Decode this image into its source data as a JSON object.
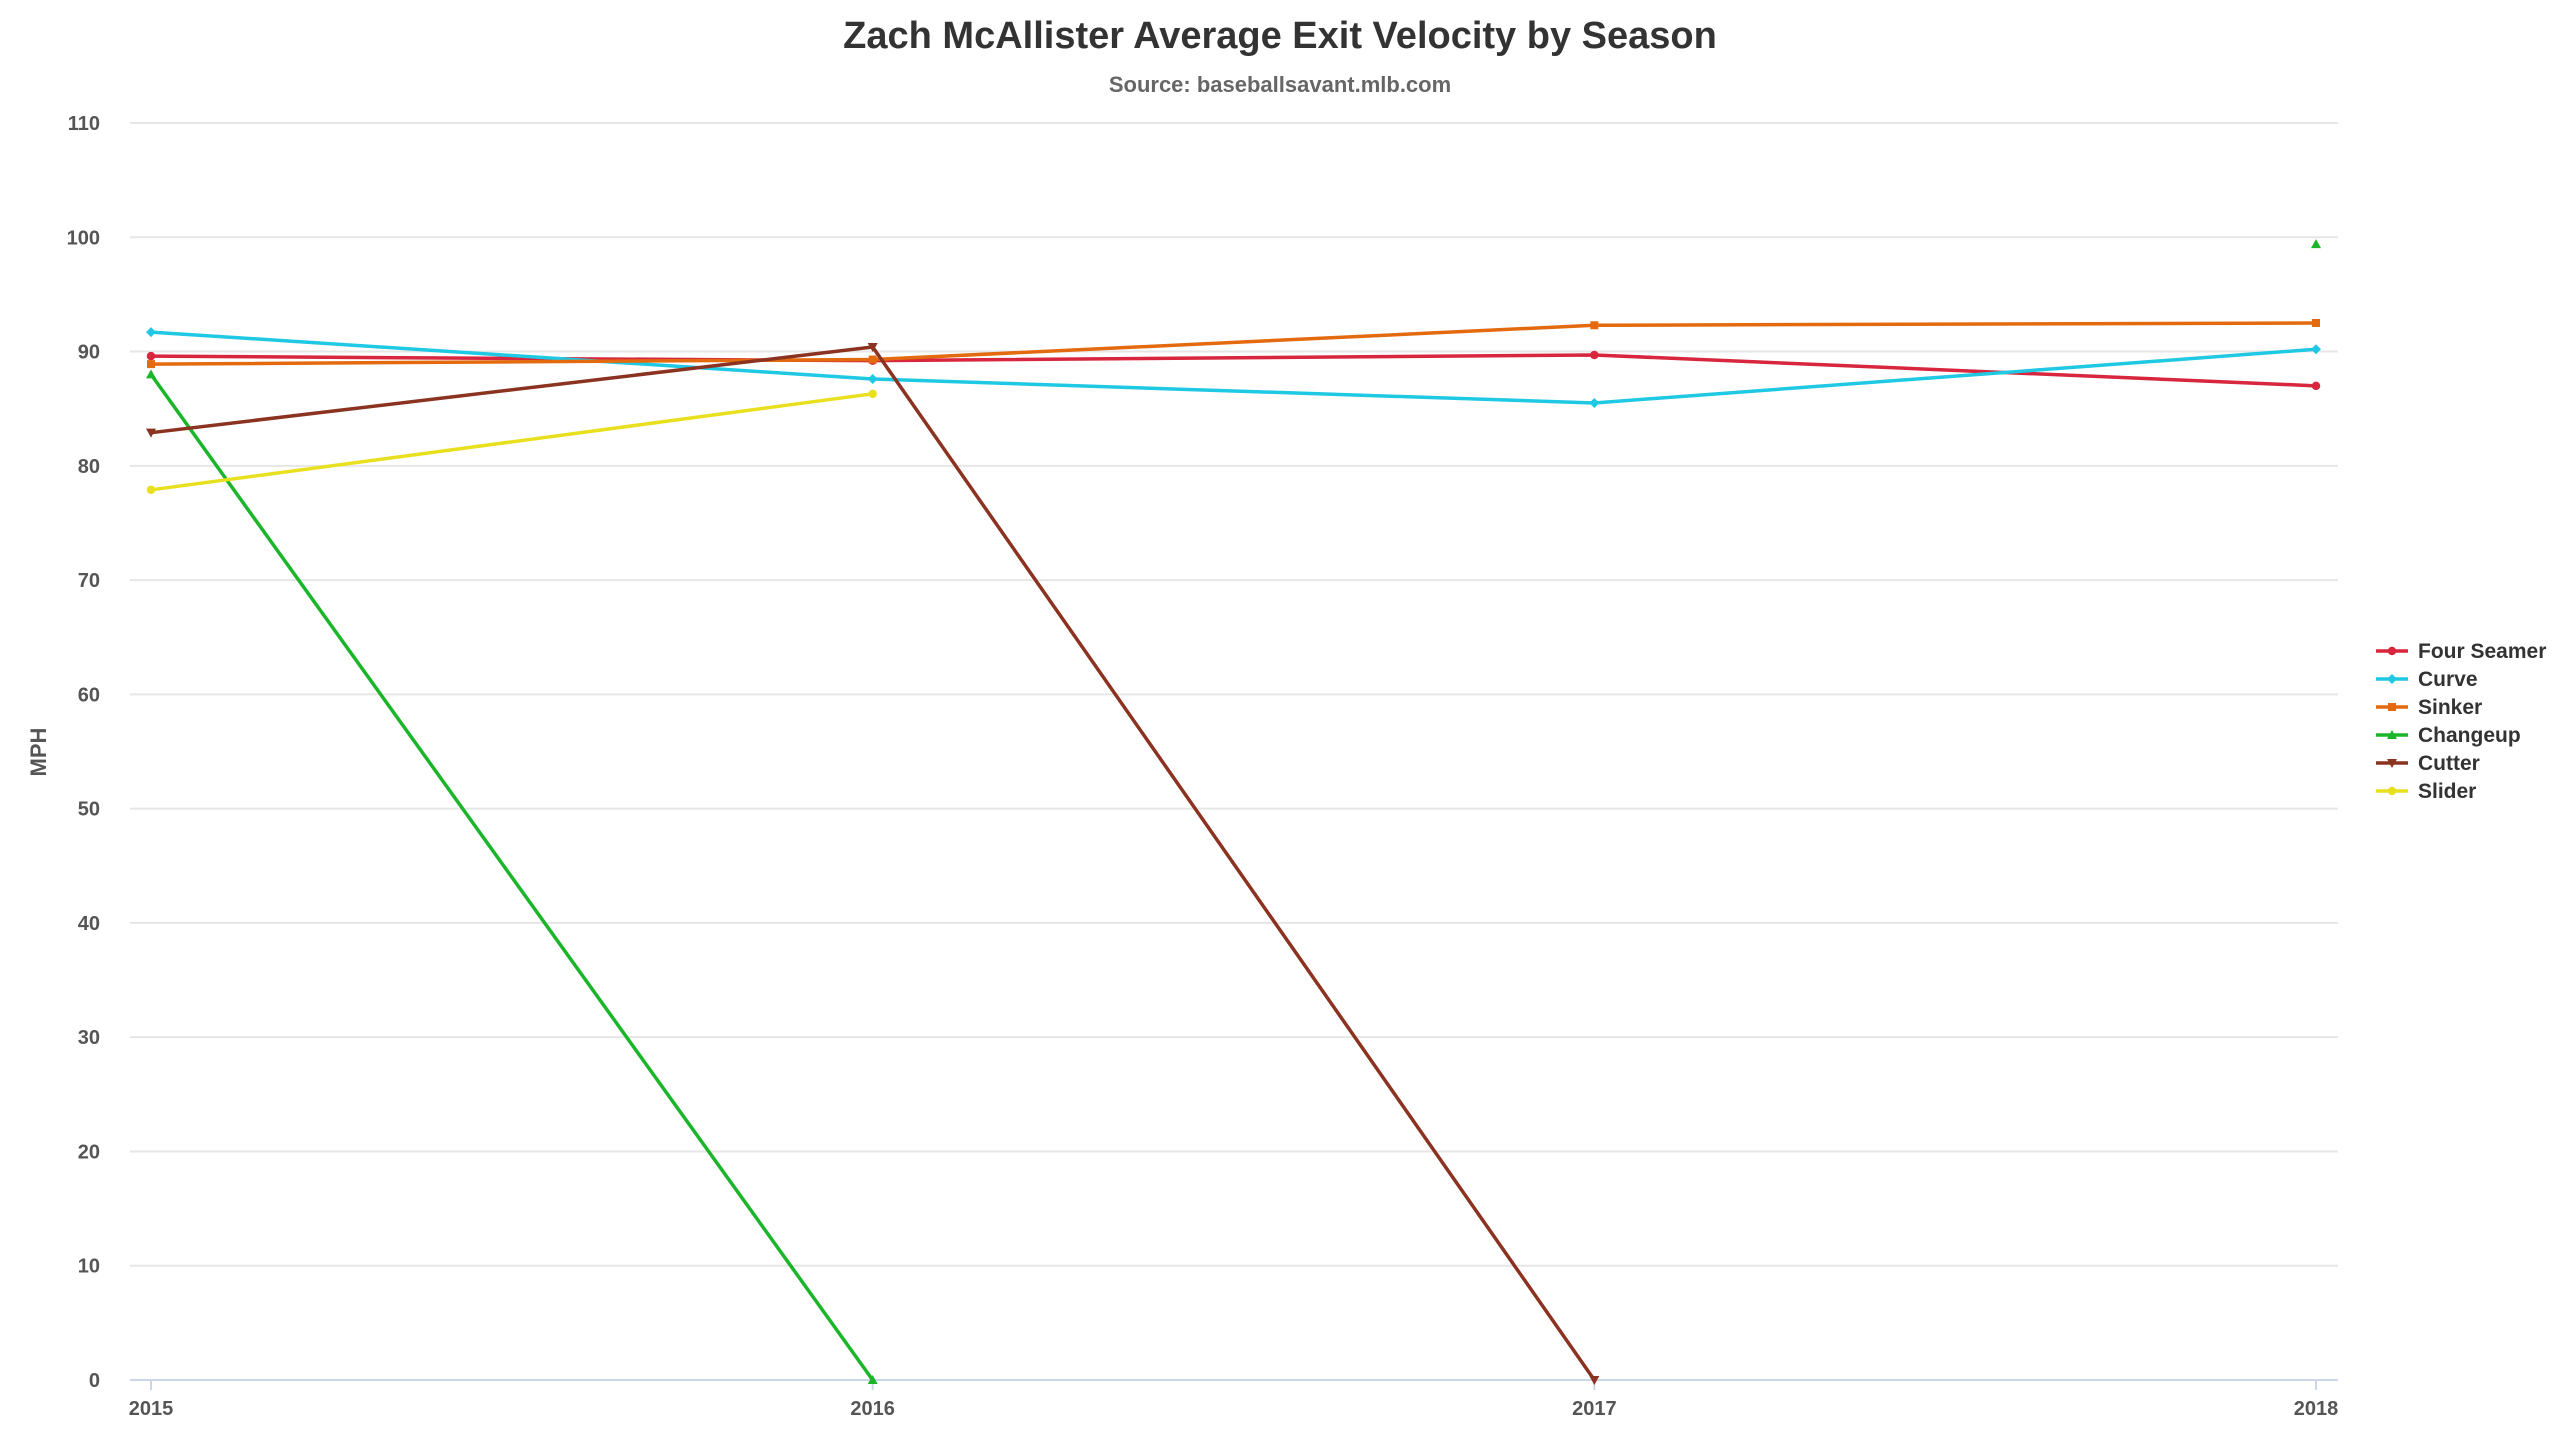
{
  "chart_data": {
    "type": "line",
    "title": "Zach McAllister Average Exit Velocity by Season",
    "subtitle": "Source: baseballsavant.mlb.com",
    "xlabel": "",
    "ylabel": "MPH",
    "categories": [
      "2015",
      "2016",
      "2017",
      "2018"
    ],
    "ylim": [
      0,
      110
    ],
    "yticks": [
      0,
      10,
      20,
      30,
      40,
      50,
      60,
      70,
      80,
      90,
      100,
      110
    ],
    "grid": true,
    "legend_position": "right",
    "series": [
      {
        "name": "Four Seamer",
        "color": "#d7263d",
        "marker": "circle",
        "values": [
          89.6,
          89.2,
          89.7,
          87.0
        ]
      },
      {
        "name": "Curve",
        "color": "#1fc8e3",
        "marker": "diamond",
        "values": [
          91.7,
          87.6,
          85.5,
          90.2
        ]
      },
      {
        "name": "Sinker",
        "color": "#e36a0e",
        "marker": "square",
        "values": [
          88.9,
          89.3,
          92.3,
          92.5
        ]
      },
      {
        "name": "Changeup",
        "color": "#1bb52a",
        "marker": "triangle",
        "values": [
          88.0,
          0,
          null,
          99.4
        ]
      },
      {
        "name": "Cutter",
        "color": "#8b3220",
        "marker": "triangle-down",
        "values": [
          82.9,
          90.4,
          0,
          null
        ]
      },
      {
        "name": "Slider",
        "color": "#e8e01e",
        "marker": "circle",
        "values": [
          77.9,
          86.3,
          null,
          null
        ]
      }
    ]
  }
}
